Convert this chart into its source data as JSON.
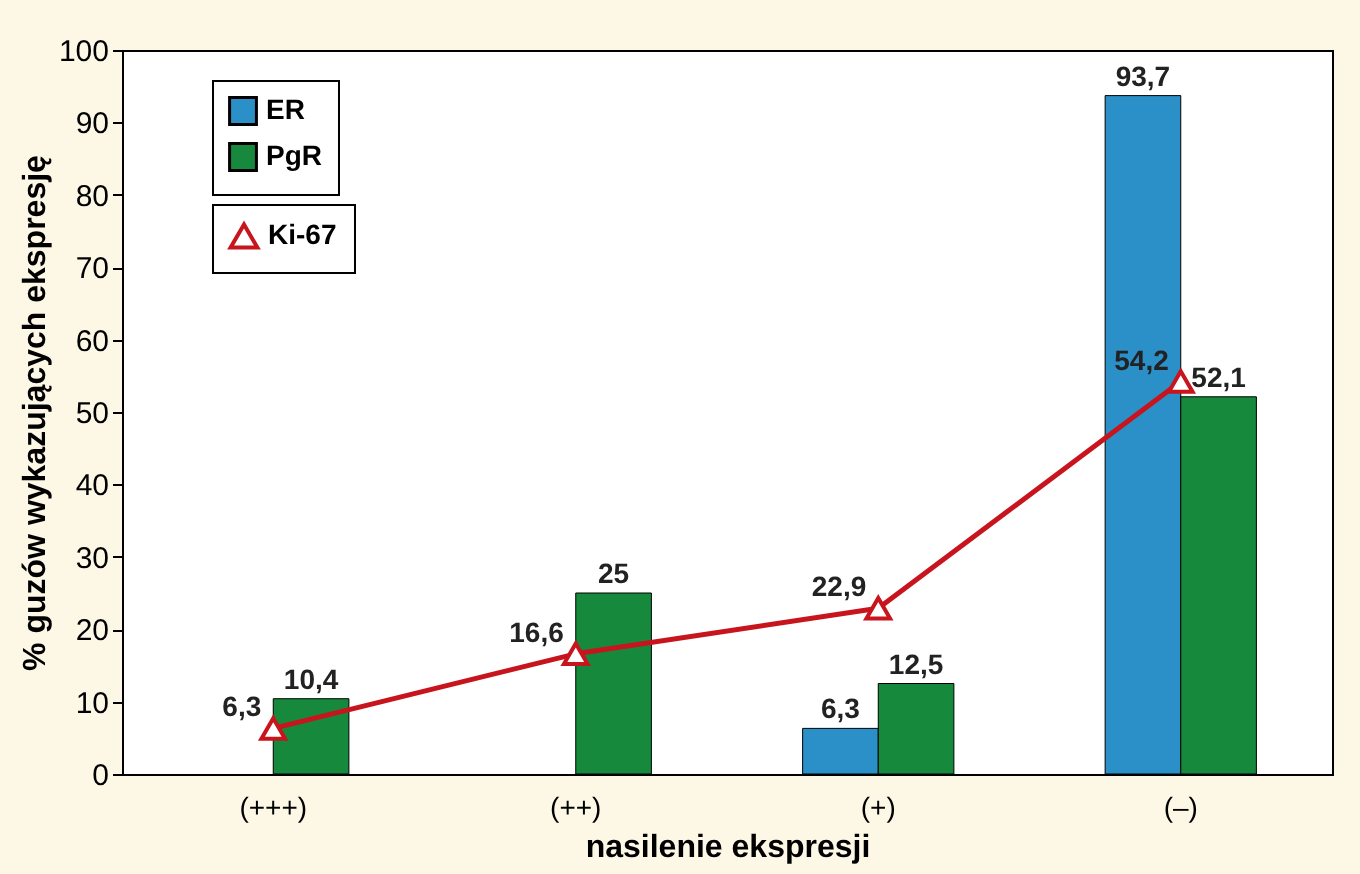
{
  "chart_data": {
    "type": "bar",
    "xlabel": "nasilenie ekspresji",
    "ylabel": "% guzów wykazujących ekspresję",
    "categories": [
      "(+++)",
      "(++)",
      "(+)",
      "(–)"
    ],
    "series": [
      {
        "name": "ER",
        "color": "#2b90c8",
        "values": [
          null,
          null,
          6.3,
          93.7
        ],
        "value_labels": [
          null,
          null,
          "6,3",
          "93,7"
        ]
      },
      {
        "name": "PgR",
        "color": "#16893d",
        "values": [
          10.4,
          25,
          12.5,
          52.1
        ],
        "value_labels": [
          "10,4",
          "25",
          "12,5",
          "52,1"
        ]
      },
      {
        "name": "Ki-67",
        "type": "line",
        "color": "#c8141c",
        "marker": "triangle",
        "line_style": "solid",
        "values": [
          6.3,
          16.6,
          22.9,
          54.2
        ],
        "value_labels": [
          "6,3",
          "16,6",
          "22,9",
          "54,2"
        ]
      }
    ],
    "ylim": [
      0,
      100
    ],
    "yticks": [
      0,
      10,
      20,
      30,
      40,
      50,
      60,
      70,
      80,
      90,
      100
    ],
    "grid": false,
    "legend": "top left"
  }
}
